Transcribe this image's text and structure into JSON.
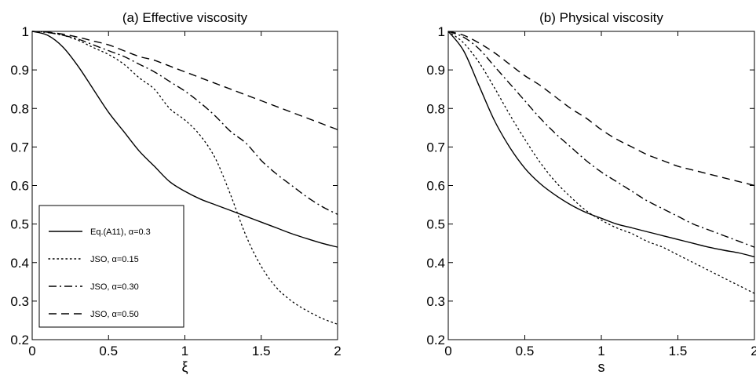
{
  "chart_data": [
    {
      "type": "line",
      "title": "(a) Effective viscosity",
      "xlabel": "ξ",
      "ylabel": "",
      "xlim": [
        0,
        2
      ],
      "ylim": [
        0.2,
        1
      ],
      "xticks": [
        "0",
        "0.5",
        "1",
        "1.5",
        "2"
      ],
      "yticks": [
        "0.2",
        "0.3",
        "0.4",
        "0.5",
        "0.6",
        "0.7",
        "0.8",
        "0.9",
        "1"
      ],
      "grid": false,
      "legend": "bottom-left",
      "x": [
        0,
        0.1,
        0.2,
        0.3,
        0.4,
        0.5,
        0.6,
        0.7,
        0.8,
        0.9,
        1.0,
        1.1,
        1.2,
        1.3,
        1.4,
        1.5,
        1.6,
        1.7,
        1.8,
        1.9,
        2.0
      ],
      "series": [
        {
          "name": "Eq.(A11), α=0.3",
          "style": "solid",
          "values": [
            1.0,
            0.99,
            0.96,
            0.91,
            0.85,
            0.79,
            0.74,
            0.69,
            0.65,
            0.61,
            0.585,
            0.565,
            0.55,
            0.535,
            0.52,
            0.505,
            0.49,
            0.475,
            0.462,
            0.45,
            0.44
          ]
        },
        {
          "name": "JSO, α=0.15",
          "style": "dotted",
          "values": [
            1.0,
            0.998,
            0.99,
            0.977,
            0.958,
            0.94,
            0.915,
            0.88,
            0.85,
            0.8,
            0.77,
            0.73,
            0.67,
            0.575,
            0.47,
            0.39,
            0.335,
            0.3,
            0.275,
            0.255,
            0.24
          ]
        },
        {
          "name": "JSO, α=0.30",
          "style": "dashdot",
          "values": [
            1.0,
            0.997,
            0.99,
            0.98,
            0.965,
            0.95,
            0.935,
            0.915,
            0.895,
            0.87,
            0.845,
            0.815,
            0.78,
            0.74,
            0.71,
            0.665,
            0.63,
            0.6,
            0.57,
            0.545,
            0.525
          ]
        },
        {
          "name": "JSO, α=0.50",
          "style": "dashed",
          "values": [
            1.0,
            0.998,
            0.993,
            0.985,
            0.975,
            0.965,
            0.95,
            0.935,
            0.925,
            0.91,
            0.895,
            0.88,
            0.865,
            0.85,
            0.835,
            0.82,
            0.805,
            0.79,
            0.775,
            0.76,
            0.745
          ]
        }
      ]
    },
    {
      "type": "line",
      "title": "(b) Physical viscosity",
      "xlabel": "s",
      "ylabel": "",
      "xlim": [
        0,
        2
      ],
      "ylim": [
        0.2,
        1
      ],
      "xticks": [
        "0",
        "0.5",
        "1",
        "1.5",
        "2"
      ],
      "yticks": [
        "0.2",
        "0.3",
        "0.4",
        "0.5",
        "0.6",
        "0.7",
        "0.8",
        "0.9",
        "1"
      ],
      "grid": false,
      "legend": "none",
      "x": [
        0,
        0.1,
        0.2,
        0.3,
        0.4,
        0.5,
        0.6,
        0.7,
        0.8,
        0.9,
        1.0,
        1.1,
        1.2,
        1.3,
        1.4,
        1.5,
        1.6,
        1.7,
        1.8,
        1.9,
        2.0
      ],
      "series": [
        {
          "style": "solid",
          "values": [
            1.0,
            0.95,
            0.86,
            0.77,
            0.7,
            0.645,
            0.605,
            0.575,
            0.55,
            0.53,
            0.515,
            0.5,
            0.49,
            0.48,
            0.47,
            0.46,
            0.45,
            0.44,
            0.432,
            0.425,
            0.415
          ]
        },
        {
          "style": "dotted",
          "values": [
            1.0,
            0.97,
            0.92,
            0.855,
            0.785,
            0.72,
            0.66,
            0.61,
            0.57,
            0.535,
            0.51,
            0.49,
            0.475,
            0.455,
            0.44,
            0.42,
            0.4,
            0.38,
            0.36,
            0.34,
            0.32
          ]
        },
        {
          "style": "dashdot",
          "values": [
            1.0,
            0.985,
            0.955,
            0.91,
            0.865,
            0.82,
            0.775,
            0.735,
            0.7,
            0.665,
            0.635,
            0.61,
            0.585,
            0.56,
            0.54,
            0.52,
            0.5,
            0.485,
            0.47,
            0.455,
            0.44
          ]
        },
        {
          "style": "dashed",
          "values": [
            1.0,
            0.99,
            0.97,
            0.945,
            0.915,
            0.885,
            0.86,
            0.83,
            0.8,
            0.775,
            0.745,
            0.72,
            0.7,
            0.68,
            0.665,
            0.65,
            0.64,
            0.63,
            0.62,
            0.61,
            0.6
          ]
        }
      ]
    }
  ]
}
